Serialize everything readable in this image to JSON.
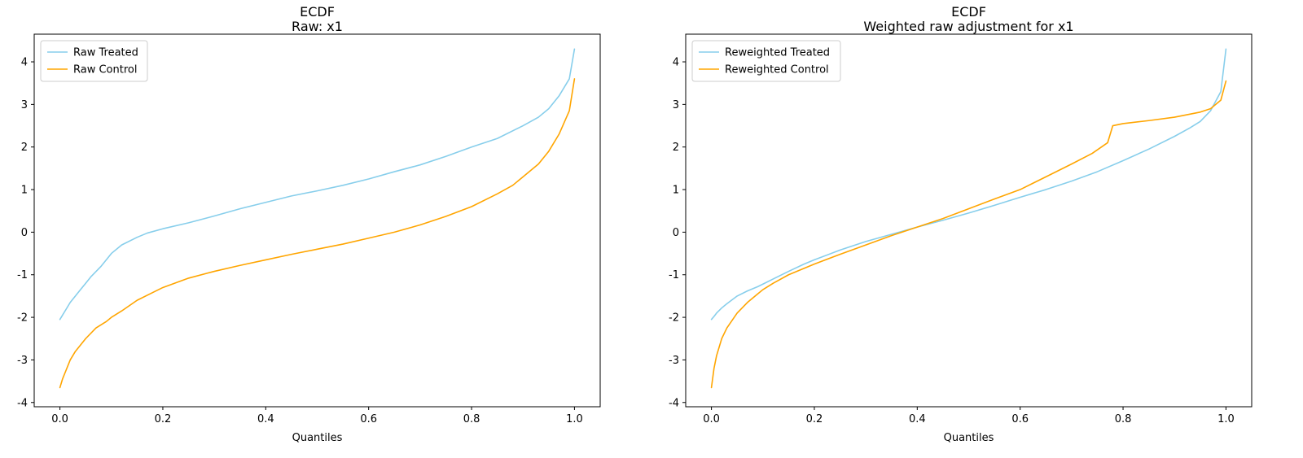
{
  "chart_data": [
    {
      "type": "line",
      "title": "ECDF",
      "subtitle": "Raw: x1",
      "xlabel": "Quantiles",
      "ylabel": "",
      "xlim": [
        -0.05,
        1.05
      ],
      "ylim": [
        -4.1,
        4.65
      ],
      "xticks": [
        0.0,
        0.2,
        0.4,
        0.6,
        0.8,
        1.0
      ],
      "xtick_labels": [
        "0.0",
        "0.2",
        "0.4",
        "0.6",
        "0.8",
        "1.0"
      ],
      "yticks": [
        -4,
        -3,
        -2,
        -1,
        0,
        1,
        2,
        3,
        4
      ],
      "ytick_labels": [
        "-4",
        "-3",
        "-2",
        "-1",
        "0",
        "1",
        "2",
        "3",
        "4"
      ],
      "grid": false,
      "legend_position": "upper-left",
      "series": [
        {
          "name": "Raw Treated",
          "color": "#87CEEB",
          "x": [
            0,
            0.005,
            0.01,
            0.02,
            0.03,
            0.04,
            0.05,
            0.06,
            0.08,
            0.1,
            0.12,
            0.15,
            0.17,
            0.2,
            0.25,
            0.3,
            0.35,
            0.4,
            0.45,
            0.5,
            0.55,
            0.6,
            0.65,
            0.7,
            0.75,
            0.8,
            0.85,
            0.9,
            0.93,
            0.95,
            0.97,
            0.99,
            1
          ],
          "y": [
            -2.05,
            -1.95,
            -1.85,
            -1.65,
            -1.5,
            -1.35,
            -1.2,
            -1.05,
            -0.8,
            -0.5,
            -0.3,
            -0.12,
            -0.02,
            0.08,
            0.22,
            0.38,
            0.55,
            0.7,
            0.85,
            0.97,
            1.1,
            1.25,
            1.42,
            1.58,
            1.78,
            2.0,
            2.2,
            2.5,
            2.7,
            2.9,
            3.2,
            3.6,
            4.3
          ]
        },
        {
          "name": "Raw Control",
          "color": "#FFA500",
          "x": [
            0,
            0.005,
            0.01,
            0.02,
            0.03,
            0.05,
            0.07,
            0.09,
            0.1,
            0.12,
            0.15,
            0.18,
            0.2,
            0.25,
            0.3,
            0.35,
            0.4,
            0.45,
            0.5,
            0.55,
            0.6,
            0.65,
            0.7,
            0.75,
            0.8,
            0.85,
            0.88,
            0.9,
            0.93,
            0.95,
            0.97,
            0.99,
            1
          ],
          "y": [
            -3.65,
            -3.45,
            -3.3,
            -3.0,
            -2.8,
            -2.5,
            -2.25,
            -2.1,
            -2.0,
            -1.85,
            -1.6,
            -1.42,
            -1.3,
            -1.08,
            -0.92,
            -0.78,
            -0.65,
            -0.52,
            -0.4,
            -0.28,
            -0.14,
            0.0,
            0.17,
            0.37,
            0.6,
            0.9,
            1.1,
            1.3,
            1.6,
            1.9,
            2.3,
            2.85,
            3.6
          ]
        }
      ]
    },
    {
      "type": "line",
      "title": "ECDF",
      "subtitle": "Weighted raw adjustment for x1",
      "xlabel": "Quantiles",
      "ylabel": "",
      "xlim": [
        -0.05,
        1.05
      ],
      "ylim": [
        -4.1,
        4.65
      ],
      "xticks": [
        0.0,
        0.2,
        0.4,
        0.6,
        0.8,
        1.0
      ],
      "xtick_labels": [
        "0.0",
        "0.2",
        "0.4",
        "0.6",
        "0.8",
        "1.0"
      ],
      "yticks": [
        -4,
        -3,
        -2,
        -1,
        0,
        1,
        2,
        3,
        4
      ],
      "ytick_labels": [
        "-4",
        "-3",
        "-2",
        "-1",
        "0",
        "1",
        "2",
        "3",
        "4"
      ],
      "grid": false,
      "legend_position": "upper-left",
      "series": [
        {
          "name": "Reweighted Treated",
          "color": "#87CEEB",
          "x": [
            0,
            0.005,
            0.01,
            0.02,
            0.03,
            0.05,
            0.07,
            0.09,
            0.1,
            0.12,
            0.15,
            0.18,
            0.2,
            0.25,
            0.3,
            0.35,
            0.4,
            0.45,
            0.5,
            0.55,
            0.6,
            0.65,
            0.7,
            0.75,
            0.8,
            0.85,
            0.9,
            0.93,
            0.95,
            0.97,
            0.99,
            1
          ],
          "y": [
            -2.05,
            -1.98,
            -1.9,
            -1.78,
            -1.68,
            -1.5,
            -1.38,
            -1.28,
            -1.22,
            -1.1,
            -0.92,
            -0.75,
            -0.65,
            -0.42,
            -0.22,
            -0.05,
            0.12,
            0.28,
            0.45,
            0.63,
            0.82,
            1.0,
            1.2,
            1.42,
            1.68,
            1.95,
            2.25,
            2.45,
            2.6,
            2.85,
            3.3,
            4.3
          ]
        },
        {
          "name": "Reweighted Control",
          "color": "#FFA500",
          "x": [
            0,
            0.005,
            0.01,
            0.02,
            0.03,
            0.05,
            0.07,
            0.09,
            0.1,
            0.12,
            0.15,
            0.18,
            0.2,
            0.25,
            0.3,
            0.35,
            0.4,
            0.45,
            0.5,
            0.55,
            0.6,
            0.65,
            0.7,
            0.74,
            0.77,
            0.78,
            0.8,
            0.85,
            0.9,
            0.95,
            0.97,
            0.99,
            1
          ],
          "y": [
            -3.65,
            -3.2,
            -2.9,
            -2.5,
            -2.25,
            -1.9,
            -1.65,
            -1.45,
            -1.35,
            -1.2,
            -1.0,
            -0.85,
            -0.75,
            -0.52,
            -0.3,
            -0.08,
            0.12,
            0.32,
            0.55,
            0.78,
            1.0,
            1.3,
            1.6,
            1.85,
            2.1,
            2.5,
            2.55,
            2.62,
            2.7,
            2.82,
            2.9,
            3.1,
            3.55
          ]
        }
      ]
    }
  ]
}
